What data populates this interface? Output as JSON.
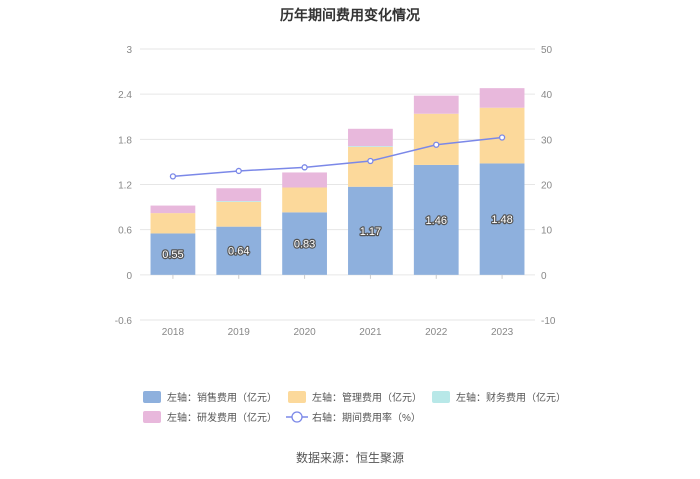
{
  "chart_data": {
    "type": "bar",
    "title": "历年期间费用变化情况",
    "categories": [
      "2018",
      "2019",
      "2020",
      "2021",
      "2022",
      "2023"
    ],
    "left_axis": {
      "min": -0.6,
      "max": 3,
      "ticks": [
        "3",
        "2.4",
        "1.8",
        "1.2",
        "0.6",
        "0",
        "-0.6"
      ],
      "tick_values": [
        3,
        2.4,
        1.8,
        1.2,
        0.6,
        0,
        -0.6
      ]
    },
    "right_axis": {
      "min": -10,
      "max": 50,
      "ticks": [
        "50",
        "40",
        "30",
        "20",
        "10",
        "0",
        "-10"
      ],
      "tick_values": [
        50,
        40,
        30,
        20,
        10,
        0,
        -10
      ]
    },
    "series": [
      {
        "name": "左轴：销售费用（亿元）",
        "axis": "left",
        "type": "bar",
        "color": "#8eb0dd",
        "values": [
          0.55,
          0.64,
          0.83,
          1.17,
          1.46,
          1.48
        ],
        "labels": [
          "0.55",
          "0.64",
          "0.83",
          "1.17",
          "1.46",
          "1.48"
        ]
      },
      {
        "name": "左轴：管理费用（亿元）",
        "axis": "left",
        "type": "bar",
        "color": "#fcd99b",
        "values": [
          0.27,
          0.33,
          0.33,
          0.53,
          0.68,
          0.74
        ]
      },
      {
        "name": "左轴：财务费用（亿元）",
        "axis": "left",
        "type": "bar",
        "color": "#b8e8e8",
        "values": [
          0.0,
          0.01,
          0.0,
          0.01,
          0.0,
          0.0
        ]
      },
      {
        "name": "左轴：研发费用（亿元）",
        "axis": "left",
        "type": "bar",
        "color": "#e8b8dc",
        "values": [
          0.1,
          0.17,
          0.2,
          0.23,
          0.24,
          0.26
        ]
      },
      {
        "name": "右轴：期间费用率（%）",
        "axis": "right",
        "type": "line",
        "color": "#7b88e8",
        "values": [
          21.8,
          23.0,
          23.8,
          25.2,
          28.8,
          30.4
        ]
      }
    ],
    "xlabel": "",
    "ylabel": "",
    "grid": true,
    "legend_position": "bottom"
  },
  "source": "数据来源：恒生聚源"
}
